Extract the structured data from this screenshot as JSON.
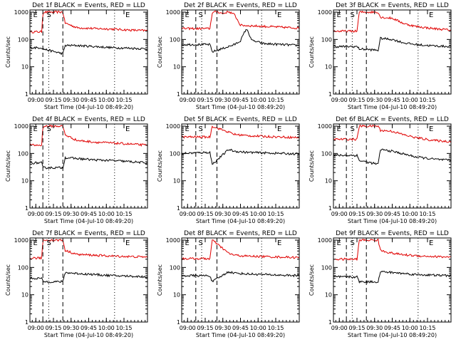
{
  "figure": {
    "ylabel": "Counts/sec",
    "xlabel": "Start Time (04-Jul-10 08:49:20)"
  },
  "colors": {
    "events": "#000000",
    "lld": "#e00000",
    "axes": "#000000"
  },
  "chart_data": [
    {
      "type": "line",
      "title": "Det 1f BLACK = Events, RED = LLD",
      "xticks": [
        "09:00",
        "09:15",
        "09:30",
        "09:45",
        "10:00",
        "10:15"
      ],
      "yticks": [
        "1",
        "10",
        "100",
        "1000"
      ],
      "ylim": [
        1,
        1200
      ],
      "yscale": "log",
      "markers": [
        "E",
        "S",
        "E"
      ],
      "series": [
        {
          "name": "Events",
          "x": [
            0.0,
            0.1,
            0.11,
            0.28,
            0.3,
            0.4,
            0.55,
            0.7,
            0.85,
            1.0
          ],
          "y": [
            50,
            50,
            45,
            30,
            60,
            60,
            55,
            50,
            48,
            45
          ]
        },
        {
          "name": "LLD",
          "x": [
            0.0,
            0.1,
            0.11,
            0.28,
            0.3,
            0.4,
            0.55,
            0.7,
            0.85,
            1.0
          ],
          "y": [
            190,
            190,
            1000,
            1000,
            400,
            270,
            250,
            240,
            220,
            210
          ]
        }
      ]
    },
    {
      "type": "line",
      "title": "Det 2f BLACK = Events, RED = LLD",
      "xticks": [
        "09:00",
        "09:15",
        "09:30",
        "09:45",
        "10:00",
        "10:15"
      ],
      "yticks": [
        "1",
        "10",
        "100",
        "1000"
      ],
      "ylim": [
        1,
        1200
      ],
      "yscale": "log",
      "markers": [
        "E",
        "S",
        "E"
      ],
      "series": [
        {
          "name": "Events",
          "x": [
            0.0,
            0.24,
            0.26,
            0.4,
            0.45,
            0.5,
            0.55,
            0.6,
            0.7,
            0.85,
            1.0
          ],
          "y": [
            65,
            65,
            35,
            55,
            65,
            90,
            250,
            90,
            70,
            65,
            60
          ]
        },
        {
          "name": "LLD",
          "x": [
            0.0,
            0.24,
            0.26,
            0.3,
            0.35,
            0.4,
            0.45,
            0.5,
            0.7,
            0.85,
            1.0
          ],
          "y": [
            250,
            250,
            950,
            1050,
            880,
            1050,
            800,
            330,
            300,
            280,
            260
          ]
        }
      ]
    },
    {
      "type": "line",
      "title": "Det 3f BLACK = Events, RED = LLD",
      "xticks": [
        "09:00",
        "09:15",
        "09:30",
        "09:45",
        "10:00",
        "10:15"
      ],
      "yticks": [
        "1",
        "10",
        "100",
        "1000"
      ],
      "ylim": [
        1,
        1200
      ],
      "yscale": "log",
      "markers": [
        "E",
        "S",
        "E"
      ],
      "series": [
        {
          "name": "Events",
          "x": [
            0.0,
            0.2,
            0.22,
            0.38,
            0.4,
            0.5,
            0.6,
            0.7,
            0.85,
            1.0
          ],
          "y": [
            55,
            55,
            45,
            40,
            110,
            100,
            75,
            65,
            58,
            55
          ]
        },
        {
          "name": "LLD",
          "x": [
            0.0,
            0.2,
            0.22,
            0.38,
            0.4,
            0.5,
            0.6,
            0.7,
            0.85,
            1.0
          ],
          "y": [
            200,
            200,
            1000,
            1000,
            650,
            600,
            380,
            300,
            250,
            220
          ]
        }
      ]
    },
    {
      "type": "line",
      "title": "Det 4f BLACK = Events, RED = LLD",
      "xticks": [
        "09:00",
        "09:15",
        "09:30",
        "09:45",
        "10:00",
        "10:15"
      ],
      "yticks": [
        "1",
        "10",
        "100",
        "1000"
      ],
      "ylim": [
        1,
        1200
      ],
      "yscale": "log",
      "markers": [
        "E",
        "S",
        "E"
      ],
      "series": [
        {
          "name": "Events",
          "x": [
            0.0,
            0.1,
            0.11,
            0.28,
            0.3,
            0.4,
            0.55,
            0.7,
            0.85,
            1.0
          ],
          "y": [
            45,
            45,
            30,
            30,
            70,
            65,
            58,
            55,
            50,
            45
          ]
        },
        {
          "name": "LLD",
          "x": [
            0.0,
            0.1,
            0.11,
            0.28,
            0.3,
            0.4,
            0.55,
            0.7,
            0.85,
            1.0
          ],
          "y": [
            200,
            200,
            1000,
            1000,
            480,
            300,
            260,
            240,
            220,
            200
          ]
        }
      ]
    },
    {
      "type": "line",
      "title": "Det 5f BLACK = Events, RED = LLD",
      "xticks": [
        "09:00",
        "09:15",
        "09:30",
        "09:45",
        "10:00",
        "10:15"
      ],
      "yticks": [
        "1",
        "10",
        "100",
        "1000"
      ],
      "ylim": [
        1,
        1200
      ],
      "yscale": "log",
      "markers": [
        "E",
        "S",
        "E"
      ],
      "series": [
        {
          "name": "Events",
          "x": [
            0.0,
            0.24,
            0.26,
            0.4,
            0.45,
            0.55,
            0.7,
            0.85,
            1.0
          ],
          "y": [
            100,
            110,
            40,
            140,
            120,
            110,
            105,
            100,
            95
          ]
        },
        {
          "name": "LLD",
          "x": [
            0.0,
            0.24,
            0.26,
            0.4,
            0.45,
            0.55,
            0.7,
            0.85,
            1.0
          ],
          "y": [
            400,
            400,
            1000,
            600,
            500,
            450,
            420,
            400,
            380
          ]
        }
      ]
    },
    {
      "type": "line",
      "title": "Det 6f BLACK = Events, RED = LLD",
      "xticks": [
        "09:00",
        "09:15",
        "09:30",
        "09:45",
        "10:00",
        "10:15"
      ],
      "yticks": [
        "1",
        "10",
        "100",
        "1000"
      ],
      "ylim": [
        1,
        1200
      ],
      "yscale": "log",
      "markers": [
        "E",
        "S",
        "E"
      ],
      "series": [
        {
          "name": "Events",
          "x": [
            0.0,
            0.2,
            0.22,
            0.38,
            0.4,
            0.5,
            0.6,
            0.7,
            0.85,
            1.0
          ],
          "y": [
            85,
            85,
            55,
            40,
            140,
            120,
            95,
            75,
            62,
            55
          ]
        },
        {
          "name": "LLD",
          "x": [
            0.0,
            0.2,
            0.22,
            0.38,
            0.4,
            0.5,
            0.6,
            0.7,
            0.85,
            1.0
          ],
          "y": [
            330,
            330,
            1000,
            1000,
            700,
            650,
            480,
            380,
            300,
            270
          ]
        }
      ]
    },
    {
      "type": "line",
      "title": "Det 7f BLACK = Events, RED = LLD",
      "xticks": [
        "09:00",
        "09:15",
        "09:30",
        "09:45",
        "10:00",
        "10:15"
      ],
      "yticks": [
        "1",
        "10",
        "100",
        "1000"
      ],
      "ylim": [
        1,
        1200
      ],
      "yscale": "log",
      "markers": [
        "E",
        "S",
        "E"
      ],
      "series": [
        {
          "name": "Events",
          "x": [
            0.0,
            0.1,
            0.11,
            0.28,
            0.3,
            0.4,
            0.55,
            0.7,
            0.85,
            1.0
          ],
          "y": [
            40,
            40,
            30,
            30,
            65,
            60,
            55,
            50,
            48,
            45
          ]
        },
        {
          "name": "LLD",
          "x": [
            0.0,
            0.1,
            0.11,
            0.28,
            0.3,
            0.4,
            0.55,
            0.7,
            0.85,
            1.0
          ],
          "y": [
            220,
            220,
            1000,
            1000,
            420,
            300,
            280,
            260,
            250,
            240
          ]
        }
      ]
    },
    {
      "type": "line",
      "title": "Det 8f BLACK = Events, RED = LLD",
      "xticks": [
        "09:00",
        "09:15",
        "09:30",
        "09:45",
        "10:00",
        "10:15"
      ],
      "yticks": [
        "1",
        "10",
        "100",
        "1000"
      ],
      "ylim": [
        1,
        1200
      ],
      "yscale": "log",
      "markers": [
        "E",
        "S",
        "E"
      ],
      "series": [
        {
          "name": "Events",
          "x": [
            0.0,
            0.24,
            0.26,
            0.4,
            0.45,
            0.55,
            0.7,
            0.85,
            1.0
          ],
          "y": [
            50,
            50,
            30,
            70,
            62,
            58,
            55,
            52,
            50
          ]
        },
        {
          "name": "LLD",
          "x": [
            0.0,
            0.24,
            0.26,
            0.4,
            0.45,
            0.55,
            0.7,
            0.85,
            1.0
          ],
          "y": [
            210,
            210,
            1000,
            330,
            280,
            260,
            250,
            240,
            230
          ]
        }
      ]
    },
    {
      "type": "line",
      "title": "Det 9f BLACK = Events, RED = LLD",
      "xticks": [
        "09:00",
        "09:15",
        "09:30",
        "09:45",
        "10:00",
        "10:15"
      ],
      "yticks": [
        "1",
        "10",
        "100",
        "1000"
      ],
      "ylim": [
        1,
        1200
      ],
      "yscale": "log",
      "markers": [
        "E",
        "S",
        "E"
      ],
      "series": [
        {
          "name": "Events",
          "x": [
            0.0,
            0.2,
            0.22,
            0.38,
            0.4,
            0.5,
            0.6,
            0.7,
            0.85,
            1.0
          ],
          "y": [
            45,
            45,
            30,
            30,
            70,
            65,
            60,
            55,
            52,
            50
          ]
        },
        {
          "name": "LLD",
          "x": [
            0.0,
            0.2,
            0.22,
            0.38,
            0.4,
            0.5,
            0.6,
            0.7,
            0.85,
            1.0
          ],
          "y": [
            200,
            200,
            1000,
            1000,
            420,
            330,
            290,
            270,
            250,
            240
          ]
        }
      ]
    }
  ]
}
